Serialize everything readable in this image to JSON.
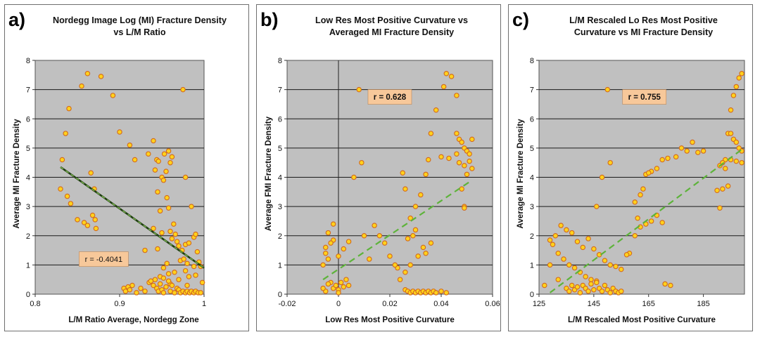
{
  "chart_data": [
    {
      "type": "scatter",
      "panel_letter": "a)",
      "title": "Nordegg Image Log (MI) Fracture Density\nvs   L/M Ratio",
      "xlabel": "L/M Ratio Average, Nordegg Zone",
      "ylabel": "Average MI Fracture Density",
      "xlim": [
        0.8,
        1.0
      ],
      "ylim": [
        0,
        8
      ],
      "xticks": [
        "0.8",
        "0.9",
        "1"
      ],
      "xtick_values": [
        0.8,
        0.9,
        1.0
      ],
      "yticks": [
        "0",
        "1",
        "2",
        "3",
        "4",
        "5",
        "6",
        "7",
        "8"
      ],
      "annotation": "r = -0.4041",
      "annotation_pos": [
        0.852,
        1.2
      ],
      "trendline": {
        "x": [
          0.83,
          1.0
        ],
        "y": [
          4.35,
          0.9
        ],
        "style": "solid-dark-green-with-light-dashes"
      },
      "points": [
        [
          0.83,
          3.6
        ],
        [
          0.832,
          4.6
        ],
        [
          0.836,
          5.5
        ],
        [
          0.84,
          6.35
        ],
        [
          0.838,
          3.35
        ],
        [
          0.842,
          3.1
        ],
        [
          0.85,
          2.55
        ],
        [
          0.855,
          7.12
        ],
        [
          0.858,
          2.45
        ],
        [
          0.862,
          7.55
        ],
        [
          0.862,
          2.35
        ],
        [
          0.866,
          4.15
        ],
        [
          0.868,
          2.7
        ],
        [
          0.87,
          3.6
        ],
        [
          0.871,
          2.55
        ],
        [
          0.872,
          2.25
        ],
        [
          0.878,
          7.45
        ],
        [
          0.892,
          6.8
        ],
        [
          0.9,
          5.55
        ],
        [
          0.912,
          5.1
        ],
        [
          0.918,
          4.6
        ],
        [
          0.975,
          7.0
        ],
        [
          0.934,
          4.8
        ],
        [
          0.94,
          5.25
        ],
        [
          0.942,
          4.25
        ],
        [
          0.944,
          4.6
        ],
        [
          0.946,
          4.55
        ],
        [
          0.95,
          4.0
        ],
        [
          0.953,
          4.8
        ],
        [
          0.955,
          4.2
        ],
        [
          0.958,
          4.9
        ],
        [
          0.96,
          4.5
        ],
        [
          0.962,
          4.7
        ],
        [
          0.945,
          3.5
        ],
        [
          0.948,
          2.85
        ],
        [
          0.952,
          3.9
        ],
        [
          0.956,
          3.3
        ],
        [
          0.958,
          2.95
        ],
        [
          0.96,
          2.15
        ],
        [
          0.962,
          1.9
        ],
        [
          0.95,
          2.1
        ],
        [
          0.94,
          2.25
        ],
        [
          0.945,
          1.55
        ],
        [
          0.952,
          0.9
        ],
        [
          0.956,
          1.05
        ],
        [
          0.948,
          0.6
        ],
        [
          0.958,
          0.7
        ],
        [
          0.964,
          2.4
        ],
        [
          0.966,
          2.05
        ],
        [
          0.968,
          1.8
        ],
        [
          0.97,
          1.65
        ],
        [
          0.972,
          1.15
        ],
        [
          0.974,
          1.5
        ],
        [
          0.976,
          1.2
        ],
        [
          0.978,
          1.7
        ],
        [
          0.98,
          1.05
        ],
        [
          0.982,
          1.75
        ],
        [
          0.985,
          3.0
        ],
        [
          0.988,
          1.95
        ],
        [
          0.99,
          2.05
        ],
        [
          0.992,
          1.45
        ],
        [
          0.994,
          1.1
        ],
        [
          0.996,
          0.95
        ],
        [
          0.998,
          0.4
        ],
        [
          0.97,
          0.5
        ],
        [
          0.978,
          0.8
        ],
        [
          0.965,
          0.75
        ],
        [
          0.98,
          0.3
        ],
        [
          0.96,
          0.35
        ],
        [
          0.952,
          0.55
        ],
        [
          0.93,
          1.5
        ],
        [
          0.978,
          4.0
        ],
        [
          0.982,
          0.6
        ],
        [
          0.988,
          0.95
        ],
        [
          0.99,
          0.65
        ],
        [
          0.905,
          0.2
        ],
        [
          0.907,
          0.1
        ],
        [
          0.91,
          0.25
        ],
        [
          0.912,
          0.15
        ],
        [
          0.915,
          0.3
        ],
        [
          0.92,
          0.05
        ],
        [
          0.925,
          0.2
        ],
        [
          0.93,
          0.1
        ],
        [
          0.935,
          0.4
        ],
        [
          0.937,
          0.45
        ],
        [
          0.94,
          0.3
        ],
        [
          0.942,
          0.5
        ],
        [
          0.944,
          0.2
        ],
        [
          0.946,
          0.1
        ],
        [
          0.948,
          0.35
        ],
        [
          0.95,
          0.15
        ],
        [
          0.952,
          0.05
        ],
        [
          0.955,
          0.25
        ],
        [
          0.958,
          0.45
        ],
        [
          0.96,
          0.1
        ],
        [
          0.962,
          0.3
        ],
        [
          0.965,
          0.05
        ],
        [
          0.968,
          0.2
        ],
        [
          0.97,
          0.15
        ],
        [
          0.972,
          0.05
        ],
        [
          0.975,
          0.1
        ],
        [
          0.978,
          0.05
        ],
        [
          0.98,
          0.1
        ],
        [
          0.983,
          0.05
        ],
        [
          0.985,
          0.1
        ],
        [
          0.988,
          0.05
        ],
        [
          0.99,
          0.1
        ],
        [
          0.993,
          0.05
        ],
        [
          0.996,
          0.05
        ]
      ]
    },
    {
      "type": "scatter",
      "panel_letter": "b)",
      "title": "Low Res Most Positive Curvature vs\nAveraged MI Fracture Density",
      "xlabel": "Low Res Most Positive Curvature",
      "ylabel": "Average FMI Fracture Density",
      "xlim": [
        -0.02,
        0.06
      ],
      "ylim": [
        0,
        8
      ],
      "xticks": [
        "-0.02",
        "0",
        "0.02",
        "0.04",
        "0.06"
      ],
      "xtick_values": [
        -0.02,
        0,
        0.02,
        0.04,
        0.06
      ],
      "yticks": [
        "0",
        "1",
        "2",
        "3",
        "4",
        "5",
        "6",
        "7",
        "8"
      ],
      "annotation": "r = 0.628",
      "annotation_pos": [
        0.0115,
        6.75
      ],
      "trendline": {
        "x": [
          -0.006,
          0.052
        ],
        "y": [
          0.5,
          3.9
        ],
        "style": "dashed-light-green"
      },
      "points": [
        [
          0.008,
          7.0
        ],
        [
          0.042,
          7.55
        ],
        [
          0.044,
          7.45
        ],
        [
          0.041,
          7.1
        ],
        [
          0.046,
          6.8
        ],
        [
          0.038,
          6.3
        ],
        [
          0.036,
          5.5
        ],
        [
          0.046,
          5.5
        ],
        [
          0.047,
          5.3
        ],
        [
          0.048,
          5.2
        ],
        [
          0.049,
          5.0
        ],
        [
          0.05,
          4.9
        ],
        [
          0.051,
          4.8
        ],
        [
          0.052,
          5.3
        ],
        [
          0.046,
          4.8
        ],
        [
          0.043,
          4.65
        ],
        [
          0.04,
          4.7
        ],
        [
          0.047,
          4.5
        ],
        [
          0.049,
          4.4
        ],
        [
          0.051,
          4.55
        ],
        [
          0.052,
          4.3
        ],
        [
          0.05,
          4.1
        ],
        [
          0.048,
          3.6
        ],
        [
          0.035,
          4.6
        ],
        [
          0.034,
          4.1
        ],
        [
          0.032,
          3.4
        ],
        [
          0.03,
          3.0
        ],
        [
          0.028,
          2.6
        ],
        [
          0.026,
          3.6
        ],
        [
          0.025,
          4.15
        ],
        [
          0.03,
          2.2
        ],
        [
          0.029,
          2.0
        ],
        [
          0.027,
          1.9
        ],
        [
          0.033,
          1.6
        ],
        [
          0.031,
          1.3
        ],
        [
          0.036,
          1.75
        ],
        [
          0.034,
          1.4
        ],
        [
          0.028,
          1.0
        ],
        [
          0.026,
          0.75
        ],
        [
          0.023,
          0.9
        ],
        [
          0.02,
          1.3
        ],
        [
          0.018,
          1.75
        ],
        [
          0.016,
          2.0
        ],
        [
          0.014,
          2.35
        ],
        [
          0.012,
          1.2
        ],
        [
          0.01,
          2.0
        ],
        [
          0.009,
          4.5
        ],
        [
          0.006,
          4.0
        ],
        [
          0.004,
          1.8
        ],
        [
          0.002,
          1.55
        ],
        [
          0.0,
          1.3
        ],
        [
          -0.002,
          1.85
        ],
        [
          -0.003,
          1.75
        ],
        [
          -0.004,
          2.1
        ],
        [
          -0.005,
          1.6
        ],
        [
          -0.006,
          1.0
        ],
        [
          -0.005,
          1.4
        ],
        [
          -0.004,
          1.2
        ],
        [
          -0.002,
          2.4
        ],
        [
          0.049,
          3.0
        ],
        [
          0.049,
          2.95
        ],
        [
          0.022,
          1.0
        ],
        [
          0.024,
          0.5
        ],
        [
          -0.002,
          0.2
        ],
        [
          -0.001,
          0.3
        ],
        [
          0.0,
          0.15
        ],
        [
          0.001,
          0.4
        ],
        [
          0.002,
          0.25
        ],
        [
          0.003,
          0.5
        ],
        [
          0.004,
          0.3
        ],
        [
          -0.003,
          0.4
        ],
        [
          -0.004,
          0.35
        ],
        [
          -0.005,
          0.1
        ],
        [
          -0.006,
          0.2
        ],
        [
          0.0,
          0.05
        ],
        [
          0.026,
          0.15
        ],
        [
          0.027,
          0.1
        ],
        [
          0.028,
          0.05
        ],
        [
          0.029,
          0.1
        ],
        [
          0.03,
          0.05
        ],
        [
          0.031,
          0.1
        ],
        [
          0.032,
          0.05
        ],
        [
          0.033,
          0.1
        ],
        [
          0.034,
          0.05
        ],
        [
          0.035,
          0.1
        ],
        [
          0.036,
          0.05
        ],
        [
          0.037,
          0.1
        ],
        [
          0.038,
          0.05
        ],
        [
          0.04,
          0.1
        ],
        [
          0.042,
          0.05
        ]
      ]
    },
    {
      "type": "scatter",
      "panel_letter": "c)",
      "title": "L/M Rescaled Lo Res Most Positive\nCurvature vs MI Fracture Density",
      "xlabel": "L/M  Rescaled Most Positive Curvature",
      "ylabel": "Average MI Fracture Density",
      "xlim": [
        125,
        200
      ],
      "ylim": [
        0,
        8
      ],
      "xticks": [
        "125",
        "145",
        "165",
        "185"
      ],
      "xtick_values": [
        125,
        145,
        165,
        185
      ],
      "yticks": [
        "0",
        "1",
        "2",
        "3",
        "4",
        "5",
        "6",
        "7",
        "8"
      ],
      "annotation": "r = 0.755",
      "annotation_pos": [
        155.5,
        6.75
      ],
      "trendline": {
        "x": [
          129,
          199
        ],
        "y": [
          0.05,
          4.95
        ],
        "style": "dashed-light-green"
      },
      "points": [
        [
          150,
          7.0
        ],
        [
          199,
          7.55
        ],
        [
          198,
          7.4
        ],
        [
          197,
          7.1
        ],
        [
          196,
          6.8
        ],
        [
          195,
          6.3
        ],
        [
          194,
          5.5
        ],
        [
          195,
          5.5
        ],
        [
          196,
          5.3
        ],
        [
          197,
          5.2
        ],
        [
          198,
          5.0
        ],
        [
          199,
          4.9
        ],
        [
          193,
          4.6
        ],
        [
          192,
          4.5
        ],
        [
          191,
          4.4
        ],
        [
          199,
          4.5
        ],
        [
          197,
          4.55
        ],
        [
          195,
          4.6
        ],
        [
          193,
          4.3
        ],
        [
          194,
          3.7
        ],
        [
          192,
          3.6
        ],
        [
          190,
          3.55
        ],
        [
          185,
          4.9
        ],
        [
          183,
          4.85
        ],
        [
          181,
          5.2
        ],
        [
          179,
          4.9
        ],
        [
          177,
          5.0
        ],
        [
          175,
          4.7
        ],
        [
          172,
          4.65
        ],
        [
          170,
          4.6
        ],
        [
          168,
          4.3
        ],
        [
          166,
          4.2
        ],
        [
          164,
          4.1
        ],
        [
          162,
          3.4
        ],
        [
          160,
          3.15
        ],
        [
          165,
          4.15
        ],
        [
          163,
          3.6
        ],
        [
          161,
          2.6
        ],
        [
          170,
          2.45
        ],
        [
          168,
          2.7
        ],
        [
          166,
          2.5
        ],
        [
          164,
          2.4
        ],
        [
          162,
          2.3
        ],
        [
          160,
          2.0
        ],
        [
          158,
          1.4
        ],
        [
          157,
          1.35
        ],
        [
          171,
          0.35
        ],
        [
          173,
          0.3
        ],
        [
          155,
          0.85
        ],
        [
          153,
          0.95
        ],
        [
          151,
          1.0
        ],
        [
          149,
          1.15
        ],
        [
          147,
          1.35
        ],
        [
          145,
          1.55
        ],
        [
          143,
          1.9
        ],
        [
          141,
          1.6
        ],
        [
          139,
          1.8
        ],
        [
          137,
          2.1
        ],
        [
          135,
          2.2
        ],
        [
          133,
          2.35
        ],
        [
          131,
          2.0
        ],
        [
          129,
          1.85
        ],
        [
          130,
          1.7
        ],
        [
          132,
          1.4
        ],
        [
          134,
          1.2
        ],
        [
          136,
          1.0
        ],
        [
          138,
          0.9
        ],
        [
          140,
          0.75
        ],
        [
          142,
          0.6
        ],
        [
          144,
          0.5
        ],
        [
          146,
          0.45
        ],
        [
          148,
          4.0
        ],
        [
          151,
          4.5
        ],
        [
          146,
          3.0
        ],
        [
          127,
          0.3
        ],
        [
          129,
          1.0
        ],
        [
          132,
          0.5
        ],
        [
          191,
          2.95
        ],
        [
          135,
          0.2
        ],
        [
          136,
          0.1
        ],
        [
          137,
          0.3
        ],
        [
          138,
          0.15
        ],
        [
          139,
          0.25
        ],
        [
          140,
          0.05
        ],
        [
          141,
          0.3
        ],
        [
          142,
          0.2
        ],
        [
          143,
          0.1
        ],
        [
          144,
          0.35
        ],
        [
          145,
          0.15
        ],
        [
          146,
          0.4
        ],
        [
          147,
          0.2
        ],
        [
          148,
          0.1
        ],
        [
          149,
          0.3
        ],
        [
          150,
          0.15
        ],
        [
          151,
          0.05
        ],
        [
          152,
          0.2
        ],
        [
          153,
          0.1
        ],
        [
          154,
          0.05
        ],
        [
          155,
          0.1
        ]
      ]
    }
  ]
}
